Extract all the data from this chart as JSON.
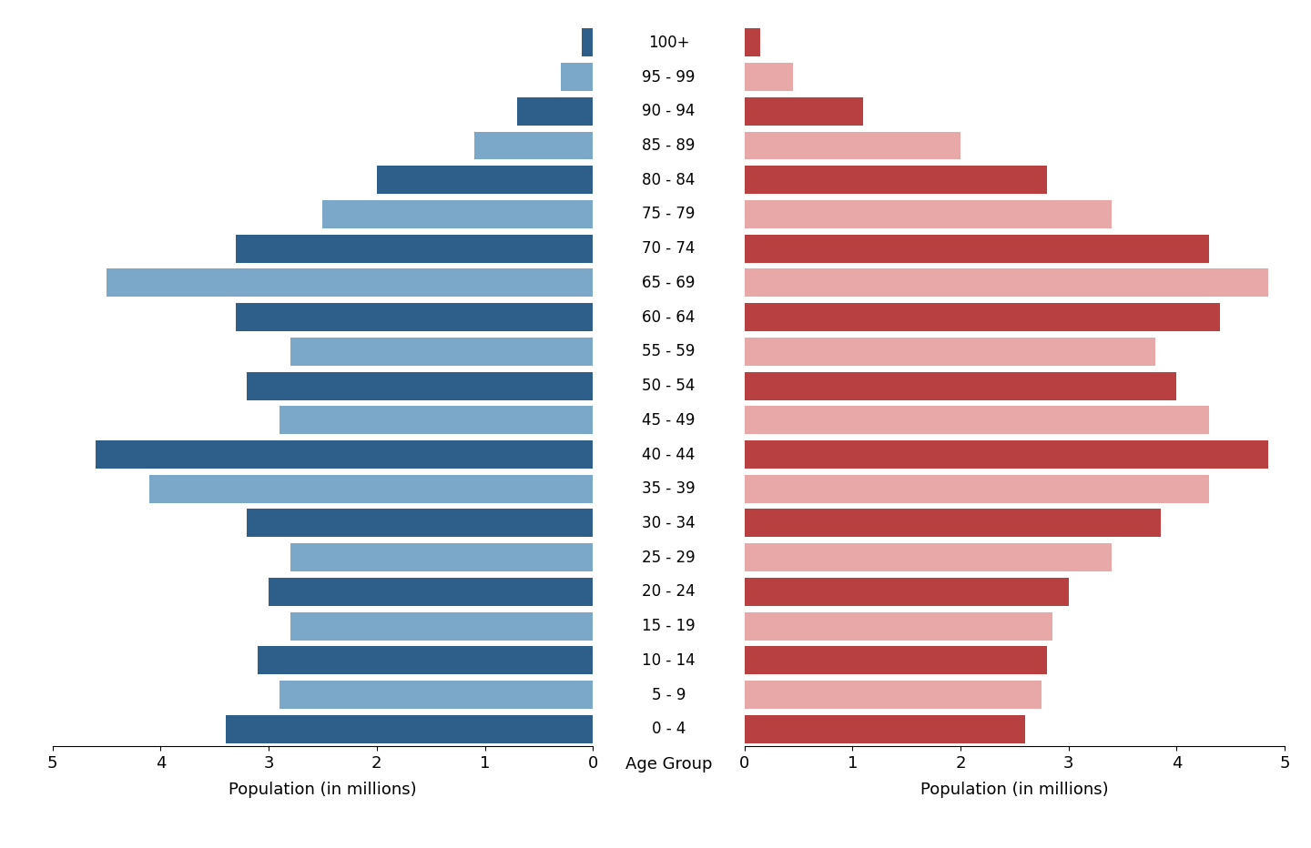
{
  "age_groups": [
    "0 - 4",
    "5 - 9",
    "10 - 14",
    "15 - 19",
    "20 - 24",
    "25 - 29",
    "30 - 34",
    "35 - 39",
    "40 - 44",
    "45 - 49",
    "50 - 54",
    "55 - 59",
    "60 - 64",
    "65 - 69",
    "70 - 74",
    "75 - 79",
    "80 - 84",
    "85 - 89",
    "90 - 94",
    "95 - 99",
    "100+"
  ],
  "male": [
    3.4,
    2.9,
    3.1,
    2.8,
    3.0,
    2.8,
    3.2,
    4.1,
    4.6,
    2.9,
    3.2,
    2.8,
    3.3,
    4.5,
    3.3,
    2.5,
    2.0,
    1.1,
    0.7,
    0.3,
    0.1
  ],
  "female": [
    2.6,
    2.75,
    2.8,
    2.85,
    3.0,
    3.4,
    3.85,
    4.3,
    4.85,
    4.3,
    4.0,
    3.8,
    4.4,
    4.85,
    4.3,
    3.4,
    2.8,
    2.0,
    1.1,
    0.45,
    0.15
  ],
  "male_color_dark": "#2d5f8a",
  "male_color_light": "#7ba7c9",
  "female_color_dark": "#b84040",
  "female_color_light": "#e8a8a8",
  "xlabel_left": "Population (in millions)",
  "xlabel_center": "Age Group",
  "xlabel_right": "Population (in millions)",
  "xlim": 5,
  "background_color": "#ffffff",
  "label_fontsize": 13,
  "tick_fontsize": 13,
  "bar_height": 0.82
}
